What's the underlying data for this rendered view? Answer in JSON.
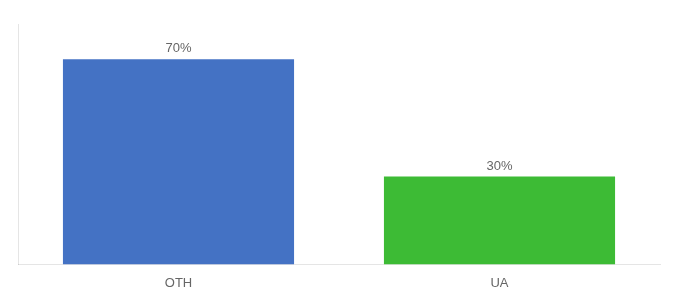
{
  "chart_data": {
    "type": "bar",
    "categories": [
      "OTH",
      "UA"
    ],
    "values": [
      70,
      30
    ],
    "value_labels": [
      "70%",
      "30%"
    ],
    "data_labels": true,
    "colors": [
      "#4472c4",
      "#3dbb35"
    ],
    "ylim": [
      0,
      82
    ],
    "grid": false,
    "tick_labels": "x"
  }
}
